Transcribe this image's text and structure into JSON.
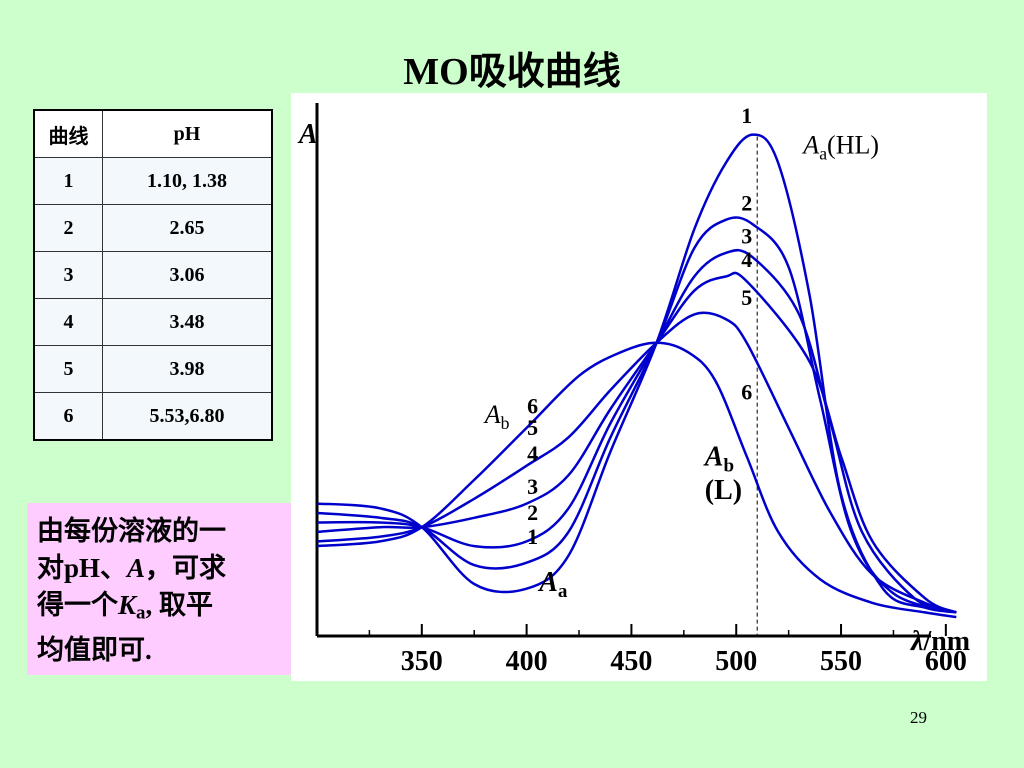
{
  "slide": {
    "title": "MO吸收曲线",
    "page_number": "29"
  },
  "table": {
    "headers": [
      "曲线",
      "pH"
    ],
    "rows": [
      {
        "curve": "1",
        "ph": "1.10, 1.38"
      },
      {
        "curve": "2",
        "ph": "2.65"
      },
      {
        "curve": "3",
        "ph": "3.06"
      },
      {
        "curve": "4",
        "ph": "3.48"
      },
      {
        "curve": "5",
        "ph": "3.98"
      },
      {
        "curve": "6",
        "ph": "5.53,6.80"
      }
    ]
  },
  "note": {
    "line1": "由每份溶液的一",
    "line2a": "对pH、",
    "line2b": "A",
    "line2c": "，可求",
    "line3a": "得一个",
    "line3b": "K",
    "line3sub": "a",
    "line3c": ", 取平",
    "line4": "均值即可."
  },
  "chart_data": {
    "type": "line",
    "ylabel": "A",
    "xlabel_symbol": "λ",
    "xlabel_unit": "/nm",
    "x_ticks": [
      350,
      400,
      450,
      500,
      550,
      600
    ],
    "xlim": [
      300,
      612
    ],
    "ylim": [
      0,
      1.0
    ],
    "isosbestic_points": [
      [
        350,
        0.23
      ],
      [
        462,
        0.62
      ]
    ],
    "series": [
      {
        "name": "1",
        "points": [
          [
            300,
            0.28
          ],
          [
            330,
            0.27
          ],
          [
            350,
            0.23
          ],
          [
            375,
            0.11
          ],
          [
            400,
            0.1
          ],
          [
            420,
            0.17
          ],
          [
            440,
            0.39
          ],
          [
            462,
            0.62
          ],
          [
            480,
            0.86
          ],
          [
            495,
            1.0
          ],
          [
            508,
            1.06
          ],
          [
            520,
            1.0
          ],
          [
            535,
            0.72
          ],
          [
            550,
            0.3
          ],
          [
            570,
            0.1
          ],
          [
            590,
            0.06
          ],
          [
            605,
            0.05
          ]
        ]
      },
      {
        "name": "2",
        "points": [
          [
            300,
            0.26
          ],
          [
            330,
            0.25
          ],
          [
            350,
            0.23
          ],
          [
            375,
            0.15
          ],
          [
            400,
            0.155
          ],
          [
            420,
            0.22
          ],
          [
            440,
            0.42
          ],
          [
            462,
            0.62
          ],
          [
            480,
            0.82
          ],
          [
            495,
            0.88
          ],
          [
            508,
            0.87
          ],
          [
            525,
            0.78
          ],
          [
            540,
            0.5
          ],
          [
            555,
            0.22
          ],
          [
            575,
            0.09
          ],
          [
            605,
            0.05
          ]
        ]
      },
      {
        "name": "3",
        "points": [
          [
            300,
            0.24
          ],
          [
            330,
            0.24
          ],
          [
            350,
            0.23
          ],
          [
            375,
            0.19
          ],
          [
            400,
            0.2
          ],
          [
            420,
            0.27
          ],
          [
            440,
            0.45
          ],
          [
            462,
            0.62
          ],
          [
            480,
            0.76
          ],
          [
            495,
            0.81
          ],
          [
            508,
            0.8
          ],
          [
            530,
            0.68
          ],
          [
            545,
            0.45
          ],
          [
            560,
            0.22
          ],
          [
            585,
            0.08
          ],
          [
            605,
            0.05
          ]
        ]
      },
      {
        "name": "4",
        "points": [
          [
            300,
            0.22
          ],
          [
            330,
            0.23
          ],
          [
            350,
            0.23
          ],
          [
            375,
            0.25
          ],
          [
            400,
            0.28
          ],
          [
            420,
            0.34
          ],
          [
            440,
            0.48
          ],
          [
            462,
            0.62
          ],
          [
            480,
            0.73
          ],
          [
            495,
            0.76
          ],
          [
            505,
            0.75
          ],
          [
            535,
            0.58
          ],
          [
            550,
            0.38
          ],
          [
            565,
            0.2
          ],
          [
            590,
            0.08
          ],
          [
            605,
            0.05
          ]
        ]
      },
      {
        "name": "5",
        "points": [
          [
            300,
            0.2
          ],
          [
            330,
            0.21
          ],
          [
            350,
            0.23
          ],
          [
            375,
            0.29
          ],
          [
            400,
            0.36
          ],
          [
            420,
            0.42
          ],
          [
            440,
            0.52
          ],
          [
            462,
            0.62
          ],
          [
            480,
            0.68
          ],
          [
            495,
            0.67
          ],
          [
            505,
            0.62
          ],
          [
            525,
            0.44
          ],
          [
            545,
            0.26
          ],
          [
            565,
            0.13
          ],
          [
            590,
            0.07
          ],
          [
            605,
            0.05
          ]
        ]
      },
      {
        "name": "6",
        "points": [
          [
            300,
            0.19
          ],
          [
            330,
            0.2
          ],
          [
            350,
            0.23
          ],
          [
            375,
            0.33
          ],
          [
            400,
            0.44
          ],
          [
            425,
            0.55
          ],
          [
            445,
            0.6
          ],
          [
            462,
            0.62
          ],
          [
            477,
            0.6
          ],
          [
            490,
            0.54
          ],
          [
            505,
            0.38
          ],
          [
            520,
            0.22
          ],
          [
            540,
            0.12
          ],
          [
            565,
            0.07
          ],
          [
            590,
            0.05
          ],
          [
            605,
            0.04
          ]
        ]
      }
    ],
    "annotations": {
      "peak_label_main": "A",
      "peak_label_sub": "a",
      "peak_label_suffix": "(HL)",
      "ab_label_main": "A",
      "ab_label_sub": "b",
      "base_label_main": "A",
      "base_label_sub": "a",
      "ab_lower_main": "A",
      "ab_lower_sub": "b",
      "ab_lower_suffix": "(L)",
      "curve_numbers_right": [
        "1",
        "2",
        "3",
        "4",
        "5",
        "6"
      ],
      "curve_numbers_left": [
        "6",
        "5",
        "4",
        "3",
        "2",
        "1"
      ],
      "dashed_line_x": 510
    },
    "grid": false,
    "line_color": "#0000cc"
  }
}
